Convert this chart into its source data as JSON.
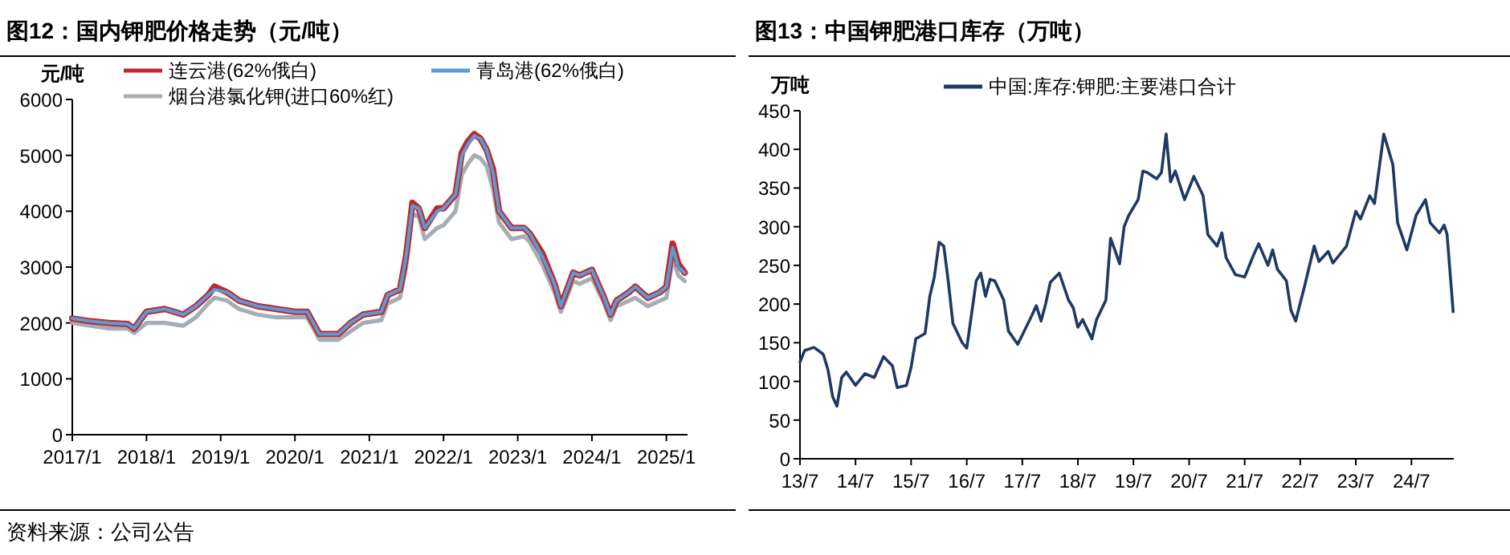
{
  "chart_data": [
    {
      "type": "line",
      "title": "图12：国内钾肥价格走势（元/吨）",
      "ylabel": "元/吨",
      "annotations": [
        "资料来源：公司公告"
      ],
      "legend": "top",
      "grid": false,
      "xlim": [
        "2017-01",
        "2025-04-15"
      ],
      "ylim": [
        0,
        6000
      ],
      "yticks": [
        0,
        1000,
        2000,
        3000,
        4000,
        5000,
        6000
      ],
      "xticks": [
        {
          "value": "2017-01",
          "label": "2017/1"
        },
        {
          "value": "2018-01",
          "label": "2018/1"
        },
        {
          "value": "2019-01",
          "label": "2019/1"
        },
        {
          "value": "2020-01",
          "label": "2020/1"
        },
        {
          "value": "2021-01",
          "label": "2021/1"
        },
        {
          "value": "2022-01",
          "label": "2022/1"
        },
        {
          "value": "2023-01",
          "label": "2023/1"
        },
        {
          "value": "2024-01",
          "label": "2024/1"
        },
        {
          "value": "2025-01",
          "label": "2025/1"
        }
      ],
      "x": [
        "2017-01",
        "2017-04",
        "2017-07",
        "2017-10",
        "2017-11",
        "2018-01",
        "2018-04",
        "2018-07",
        "2018-09",
        "2018-11",
        "2018-12",
        "2019-02",
        "2019-04",
        "2019-07",
        "2019-10",
        "2020-01",
        "2020-03",
        "2020-05",
        "2020-08",
        "2020-10",
        "2020-12",
        "2021-03",
        "2021-04",
        "2021-06",
        "2021-07",
        "2021-08",
        "2021-09",
        "2021-10",
        "2021-12",
        "2022-01",
        "2022-03",
        "2022-04",
        "2022-05",
        "2022-06",
        "2022-07",
        "2022-08",
        "2022-09",
        "2022-10",
        "2022-12",
        "2023-02",
        "2023-03",
        "2023-05",
        "2023-07",
        "2023-08",
        "2023-10",
        "2023-11",
        "2024-01",
        "2024-03",
        "2024-04",
        "2024-05",
        "2024-07",
        "2024-08",
        "2024-10",
        "2024-12",
        "2025-01",
        "2025-02",
        "2025-03",
        "2025-04"
      ],
      "series": [
        {
          "name": "连云港(62%俄白)",
          "color": "#c0282d",
          "values": [
            2080,
            2030,
            2000,
            1980,
            1900,
            2200,
            2250,
            2150,
            2300,
            2500,
            2650,
            2550,
            2400,
            2300,
            2250,
            2200,
            2200,
            1800,
            1800,
            2000,
            2150,
            2200,
            2500,
            2600,
            3200,
            4150,
            4050,
            3700,
            4050,
            4050,
            4300,
            5050,
            5250,
            5380,
            5300,
            5100,
            4750,
            4000,
            3700,
            3700,
            3600,
            3250,
            2700,
            2300,
            2900,
            2850,
            2950,
            2450,
            2150,
            2400,
            2550,
            2650,
            2450,
            2550,
            2650,
            3420,
            3050,
            2900
          ]
        },
        {
          "name": "青岛港(62%俄白)",
          "color": "#5b9bd5",
          "values": [
            2080,
            2030,
            2000,
            1980,
            1900,
            2200,
            2250,
            2150,
            2300,
            2500,
            2600,
            2550,
            2400,
            2300,
            2250,
            2200,
            2200,
            1800,
            1800,
            2000,
            2150,
            2200,
            2500,
            2600,
            3200,
            4100,
            4050,
            3700,
            4000,
            4050,
            4300,
            5000,
            5200,
            5350,
            5300,
            5100,
            4700,
            4000,
            3700,
            3700,
            3600,
            3200,
            2700,
            2300,
            2900,
            2850,
            2950,
            2450,
            2150,
            2400,
            2550,
            2650,
            2450,
            2550,
            2650,
            3350,
            3000,
            2900
          ]
        },
        {
          "name": "烟台港氯化钾(进口60%红)",
          "color": "#a6adb4",
          "values": [
            2000,
            1950,
            1900,
            1900,
            1820,
            2000,
            2000,
            1950,
            2100,
            2350,
            2450,
            2400,
            2250,
            2150,
            2100,
            2100,
            2100,
            1700,
            1700,
            1850,
            2000,
            2050,
            2350,
            2450,
            3000,
            3950,
            3900,
            3500,
            3700,
            3750,
            4000,
            4650,
            4850,
            5000,
            4950,
            4800,
            4400,
            3800,
            3500,
            3550,
            3450,
            3050,
            2550,
            2200,
            2750,
            2700,
            2800,
            2350,
            2050,
            2300,
            2400,
            2450,
            2300,
            2400,
            2450,
            3150,
            2850,
            2750
          ]
        }
      ]
    },
    {
      "type": "line",
      "title": "图13：中国钾肥港口库存（万吨）",
      "ylabel": "万吨",
      "legend": "top",
      "grid": false,
      "xlim": [
        "2013-07",
        "2025-04-05"
      ],
      "ylim": [
        0,
        450
      ],
      "yticks": [
        0,
        50,
        100,
        150,
        200,
        250,
        300,
        350,
        400,
        450
      ],
      "xticks": [
        {
          "value": "2013-07",
          "label": "13/7"
        },
        {
          "value": "2014-07",
          "label": "14/7"
        },
        {
          "value": "2015-07",
          "label": "15/7"
        },
        {
          "value": "2016-07",
          "label": "16/7"
        },
        {
          "value": "2017-07",
          "label": "17/7"
        },
        {
          "value": "2018-07",
          "label": "18/7"
        },
        {
          "value": "2019-07",
          "label": "19/7"
        },
        {
          "value": "2020-07",
          "label": "20/7"
        },
        {
          "value": "2021-07",
          "label": "21/7"
        },
        {
          "value": "2022-07",
          "label": "22/7"
        },
        {
          "value": "2023-07",
          "label": "23/7"
        },
        {
          "value": "2024-07",
          "label": "24/7"
        }
      ],
      "x": [
        "2013-07",
        "2013-08",
        "2013-10",
        "2013-12",
        "2014-01",
        "2014-02",
        "2014-03",
        "2014-04",
        "2014-05",
        "2014-07",
        "2014-09",
        "2014-11",
        "2015-01",
        "2015-03",
        "2015-04",
        "2015-06",
        "2015-07",
        "2015-08",
        "2015-10",
        "2015-11",
        "2015-12",
        "2016-01",
        "2016-02",
        "2016-03",
        "2016-04",
        "2016-06",
        "2016-07",
        "2016-09",
        "2016-10",
        "2016-11",
        "2016-12",
        "2017-01",
        "2017-03",
        "2017-04",
        "2017-06",
        "2017-07",
        "2017-09",
        "2017-10",
        "2017-11",
        "2017-12",
        "2018-01",
        "2018-03",
        "2018-05",
        "2018-06",
        "2018-07",
        "2018-08",
        "2018-10",
        "2018-11",
        "2019-01",
        "2019-02",
        "2019-03",
        "2019-04",
        "2019-05",
        "2019-06",
        "2019-08",
        "2019-09",
        "2019-10",
        "2019-12",
        "2020-01",
        "2020-02",
        "2020-03",
        "2020-04",
        "2020-06",
        "2020-08",
        "2020-10",
        "2020-11",
        "2021-01",
        "2021-02",
        "2021-03",
        "2021-05",
        "2021-07",
        "2021-09",
        "2021-10",
        "2021-12",
        "2022-01",
        "2022-02",
        "2022-04",
        "2022-05",
        "2022-06",
        "2022-08",
        "2022-10",
        "2022-11",
        "2023-01",
        "2023-02",
        "2023-05",
        "2023-07",
        "2023-08",
        "2023-10",
        "2023-11",
        "2024-01",
        "2024-03",
        "2024-04",
        "2024-06",
        "2024-08",
        "2024-10",
        "2024-11",
        "2025-01",
        "2025-02",
        "2025-02-20",
        "2025-04"
      ],
      "series": [
        {
          "name": "中国:库存:钾肥:主要港口合计",
          "color": "#1f3864",
          "values": [
            125,
            140,
            144,
            135,
            115,
            80,
            68,
            105,
            112,
            95,
            110,
            105,
            132,
            120,
            92,
            95,
            118,
            155,
            162,
            210,
            235,
            280,
            275,
            230,
            175,
            150,
            143,
            230,
            240,
            210,
            232,
            230,
            205,
            165,
            148,
            160,
            185,
            198,
            178,
            200,
            228,
            240,
            205,
            195,
            170,
            180,
            155,
            180,
            205,
            285,
            270,
            252,
            300,
            315,
            335,
            372,
            370,
            362,
            370,
            420,
            358,
            372,
            335,
            365,
            340,
            290,
            275,
            292,
            260,
            238,
            235,
            265,
            278,
            250,
            270,
            245,
            230,
            192,
            178,
            225,
            275,
            255,
            268,
            253,
            275,
            320,
            310,
            340,
            330,
            420,
            380,
            305,
            270,
            315,
            335,
            305,
            292,
            302,
            290,
            190
          ]
        }
      ]
    }
  ]
}
